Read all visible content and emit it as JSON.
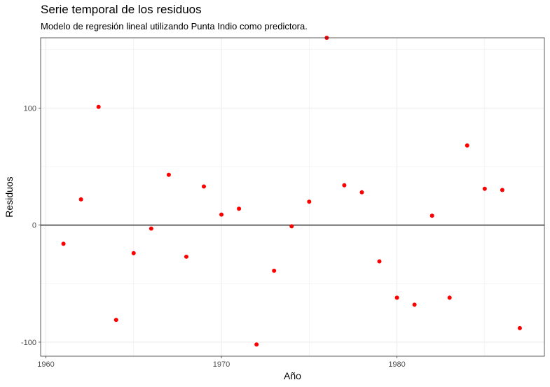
{
  "chart_data": {
    "type": "scatter",
    "title": "Serie temporal de los residuos",
    "subtitle": "Modelo de regresión lineal utilizando Punta Indio como predictora.",
    "xlabel": "Año",
    "ylabel": "Residuos",
    "xlim": [
      1959.7,
      1988.4
    ],
    "ylim": [
      -112,
      160
    ],
    "x_ticks": [
      1960,
      1970,
      1980
    ],
    "x_tick_labels": [
      "1960",
      "1970",
      "1980"
    ],
    "y_ticks": [
      -100,
      0,
      100
    ],
    "y_tick_labels": [
      "-100",
      "0",
      "100"
    ],
    "reference_line_y": 0,
    "grid": true,
    "point_color": "#ff0000",
    "points": [
      {
        "x": 1961,
        "y": -16
      },
      {
        "x": 1962,
        "y": 22
      },
      {
        "x": 1963,
        "y": 101
      },
      {
        "x": 1964,
        "y": -81
      },
      {
        "x": 1965,
        "y": -24
      },
      {
        "x": 1966,
        "y": -3
      },
      {
        "x": 1967,
        "y": 43
      },
      {
        "x": 1968,
        "y": -27
      },
      {
        "x": 1969,
        "y": 33
      },
      {
        "x": 1970,
        "y": 9
      },
      {
        "x": 1971,
        "y": 14
      },
      {
        "x": 1972,
        "y": -102
      },
      {
        "x": 1973,
        "y": -39
      },
      {
        "x": 1974,
        "y": -1
      },
      {
        "x": 1975,
        "y": 20
      },
      {
        "x": 1976,
        "y": 160
      },
      {
        "x": 1977,
        "y": 34
      },
      {
        "x": 1978,
        "y": 28
      },
      {
        "x": 1979,
        "y": -31
      },
      {
        "x": 1980,
        "y": -62
      },
      {
        "x": 1981,
        "y": -68
      },
      {
        "x": 1982,
        "y": 8
      },
      {
        "x": 1983,
        "y": -62
      },
      {
        "x": 1984,
        "y": 68
      },
      {
        "x": 1985,
        "y": 31
      },
      {
        "x": 1986,
        "y": 30
      },
      {
        "x": 1987,
        "y": -88
      }
    ]
  }
}
